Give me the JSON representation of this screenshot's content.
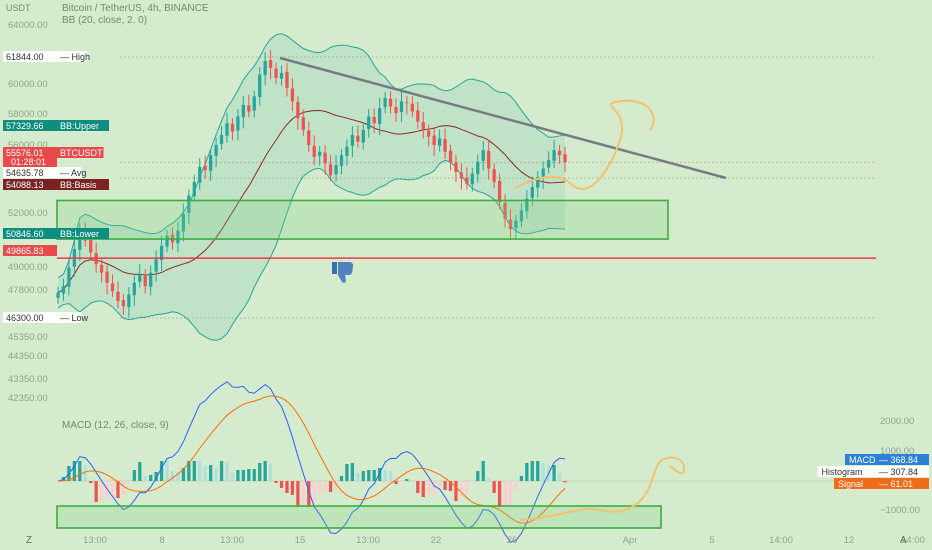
{
  "header": {
    "unit": "USDT",
    "title": "Bitcoin / TetherUS, 4h, BINANCE",
    "bb_legend": "BB (20, close, 2, 0)",
    "macd_legend": "MACD (12, 26, close, 9)"
  },
  "price_axis": {
    "ticks": [
      "64000.00",
      "60000.00",
      "58000.00",
      "56000.00",
      "52000.00",
      "49000.00",
      "47800.00",
      "45350.00",
      "44350.00",
      "43350.00",
      "42350.00"
    ],
    "range": [
      42350,
      64000
    ],
    "badges": [
      {
        "value": "61844.00",
        "label": "High",
        "style": "plain"
      },
      {
        "value": "57329.66",
        "label": "BB:Upper",
        "style": "teal"
      },
      {
        "value": "55576.01",
        "label": "BTCUSDT",
        "sub": "01:28:01",
        "style": "red"
      },
      {
        "value": "54635.78",
        "label": "Avg",
        "style": "plain"
      },
      {
        "value": "54088.13",
        "label": "BB:Basis",
        "style": "maroon"
      },
      {
        "value": "50846.60",
        "label": "BB:Lower",
        "style": "teal"
      },
      {
        "value": "49865.83",
        "label": "",
        "style": "red"
      },
      {
        "value": "46300.00",
        "label": "Low",
        "style": "plain"
      }
    ]
  },
  "macd_axis": {
    "ticks": [
      "2000.00",
      "1000.00",
      "−1000.00"
    ],
    "badges": [
      {
        "label": "MACD",
        "value": "368.84",
        "style": "blue"
      },
      {
        "label": "Histogram",
        "value": "307.84",
        "style": "plain"
      },
      {
        "label": "Signal",
        "value": "61.01",
        "style": "orange"
      }
    ]
  },
  "time_axis": {
    "labels": [
      "13:00",
      "8",
      "13:00",
      "15",
      "13:00",
      "22",
      "26",
      "Apr",
      "5",
      "14:00",
      "12",
      "14:00"
    ]
  },
  "corner_left": "Z",
  "corner_right": "A",
  "colors": {
    "background": "#d5ebcd",
    "up": "#26a69a",
    "down": "#ef5350",
    "bb_band": "#26a69a",
    "bb_basis": "#8b2a2a",
    "trendline": "#787b86",
    "support_line": "#f23645",
    "zone_border": "#3fae3f",
    "macd_line": "#2962ff",
    "signal_line": "#ff6d00",
    "arrow": "#f5c26b"
  },
  "chart_data": {
    "type": "candlestick",
    "symbol": "BTCUSDT",
    "timeframe": "4h",
    "y_range": [
      42350,
      64000
    ],
    "candles_close": [
      47800,
      48200,
      49300,
      50400,
      51600,
      50900,
      50200,
      49500,
      49000,
      48400,
      47900,
      47300,
      47000,
      47700,
      48400,
      48900,
      48200,
      49000,
      49800,
      50600,
      51200,
      50800,
      51500,
      52500,
      53600,
      54400,
      55300,
      55100,
      56000,
      56600,
      57200,
      57900,
      57400,
      58300,
      59000,
      58600,
      59500,
      60800,
      61600,
      61200,
      60600,
      60900,
      60000,
      59200,
      58200,
      57500,
      56600,
      55900,
      56200,
      55500,
      54800,
      55400,
      56000,
      56500,
      57200,
      56800,
      57500,
      58300,
      57900,
      58800,
      59400,
      58900,
      58500,
      59200,
      59100,
      58600,
      58000,
      57500,
      57100,
      56600,
      57000,
      56200,
      55600,
      55000,
      54600,
      54300,
      54900,
      55600,
      56300,
      55200,
      54400,
      53200,
      52200,
      51600,
      52100,
      52700,
      53400,
      54100,
      54700,
      55200,
      55700,
      56300,
      56000,
      55576
    ],
    "key_levels": {
      "high": 61844,
      "low": 46300,
      "support": 49865.83,
      "avg": 54635.78
    },
    "bollinger": {
      "upper": 57329.66,
      "basis": 54088.13,
      "lower": 50846.6
    },
    "macd": {
      "macd": 368.84,
      "histogram": 307.84,
      "signal": 61.01
    }
  }
}
